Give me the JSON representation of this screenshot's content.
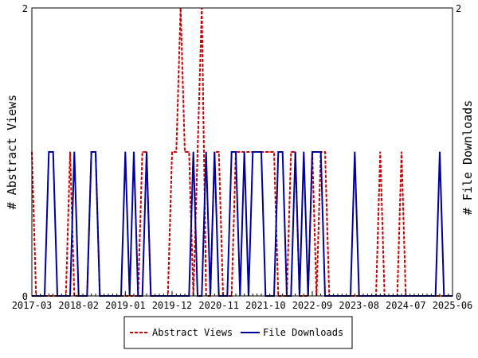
{
  "chart_data": {
    "type": "line",
    "ylabel_left": "# Abstract Views",
    "ylabel_right": "# File Downloads",
    "ylim_left": [
      0,
      2
    ],
    "ylim_right": [
      0,
      2
    ],
    "y_ticks_left": [
      "0",
      "2"
    ],
    "y_ticks_right": [
      "0",
      "2"
    ],
    "x_start": "2017-03",
    "x_end": "2025-06",
    "x_tick_labels": [
      "2017-03",
      "2018-02",
      "2019-01",
      "2019-12",
      "2020-11",
      "2021-10",
      "2022-09",
      "2023-08",
      "2024-07",
      "2025-06"
    ],
    "grid": false,
    "legend_position": "bottom",
    "series": [
      {
        "name": "Abstract Views",
        "color": "#cc0000",
        "style": "dashed",
        "values": [
          1,
          0,
          0,
          0,
          0,
          0,
          0,
          0,
          0,
          1,
          0,
          0,
          0,
          0,
          1,
          1,
          0,
          0,
          0,
          0,
          0,
          0,
          0,
          0,
          0,
          0,
          1,
          1,
          0,
          0,
          0,
          0,
          0,
          1,
          1,
          2,
          1,
          1,
          0,
          1,
          2,
          0,
          0,
          1,
          1,
          0,
          0,
          0,
          1,
          1,
          1,
          1,
          1,
          1,
          1,
          1,
          1,
          1,
          0,
          0,
          0,
          1,
          1,
          0,
          0,
          0,
          1,
          0,
          1,
          1,
          0,
          0,
          0,
          0,
          0,
          0,
          0,
          0,
          0,
          0,
          0,
          0,
          1,
          0,
          0,
          0,
          0,
          1,
          0,
          0,
          0,
          0,
          0,
          0,
          0,
          0,
          0,
          0,
          0,
          0
        ]
      },
      {
        "name": "File Downloads",
        "color": "#00009c",
        "style": "solid",
        "values": [
          0,
          0,
          0,
          0,
          1,
          1,
          0,
          0,
          0,
          0,
          1,
          0,
          0,
          0,
          1,
          1,
          0,
          0,
          0,
          0,
          0,
          0,
          1,
          0,
          1,
          0,
          0,
          1,
          0,
          0,
          0,
          0,
          0,
          0,
          0,
          0,
          0,
          0,
          1,
          0,
          0,
          1,
          0,
          1,
          0,
          0,
          0,
          1,
          1,
          0,
          1,
          0,
          1,
          1,
          1,
          0,
          0,
          0,
          1,
          1,
          0,
          0,
          1,
          0,
          1,
          0,
          1,
          1,
          1,
          0,
          0,
          0,
          0,
          0,
          0,
          0,
          1,
          0,
          0,
          0,
          0,
          0,
          0,
          0,
          0,
          0,
          0,
          0,
          0,
          0,
          0,
          0,
          0,
          0,
          0,
          0,
          1,
          0,
          0,
          0
        ]
      }
    ]
  }
}
